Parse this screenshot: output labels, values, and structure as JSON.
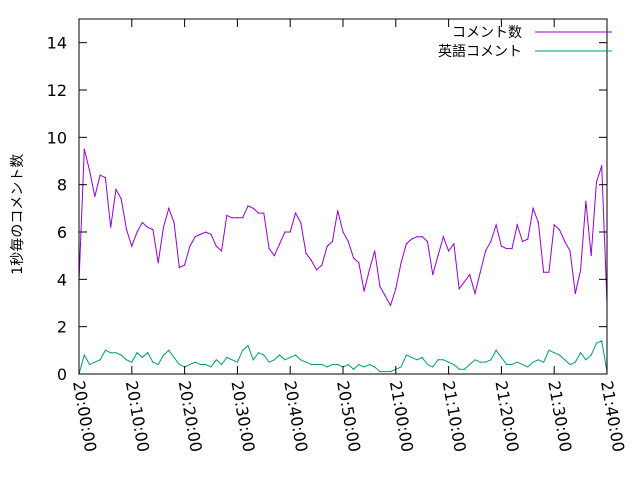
{
  "chart_data": {
    "type": "line",
    "ylabel": "1秒毎のコメント数",
    "ylim": [
      0,
      15
    ],
    "y_ticks": [
      "0",
      "2",
      "4",
      "6",
      "8",
      "10",
      "12",
      "14"
    ],
    "x_ticks": [
      "20:00:00",
      "20:10:00",
      "20:20:00",
      "20:30:00",
      "20:40:00",
      "20:50:00",
      "21:00:00",
      "21:10:00",
      "21:20:00",
      "21:30:00",
      "21:40:00"
    ],
    "x_range_minutes": [
      0,
      100
    ],
    "legend_position": "top-right",
    "grid": false,
    "series": [
      {
        "name": "コメント数",
        "color": "#9400d3",
        "values": [
          3.9,
          9.5,
          8.6,
          7.5,
          8.4,
          8.3,
          6.2,
          7.8,
          7.4,
          6.1,
          5.4,
          6.0,
          6.4,
          6.2,
          6.1,
          4.7,
          6.2,
          7.0,
          6.4,
          4.5,
          4.6,
          5.4,
          5.8,
          5.9,
          6.0,
          5.9,
          5.4,
          5.2,
          6.7,
          6.6,
          6.6,
          6.6,
          7.1,
          7.0,
          6.8,
          6.8,
          5.3,
          5.0,
          5.5,
          6.0,
          6.0,
          6.8,
          6.4,
          5.1,
          4.8,
          4.4,
          4.6,
          5.4,
          5.6,
          6.9,
          6.0,
          5.6,
          4.9,
          4.7,
          3.5,
          4.4,
          5.2,
          3.7,
          3.3,
          2.9,
          3.6,
          4.7,
          5.5,
          5.7,
          5.8,
          5.8,
          5.6,
          4.2,
          5.0,
          5.8,
          5.2,
          5.5,
          3.6,
          3.9,
          4.2,
          3.4,
          4.3,
          5.2,
          5.6,
          6.3,
          5.4,
          5.3,
          5.3,
          6.3,
          5.6,
          5.7,
          7.0,
          6.4,
          4.3,
          4.3,
          6.3,
          6.1,
          5.6,
          5.2,
          3.4,
          4.4,
          7.3,
          5.0,
          8.1,
          8.8,
          3.0
        ]
      },
      {
        "name": "英語コメント",
        "color": "#009e73",
        "values": [
          0.0,
          0.8,
          0.4,
          0.5,
          0.6,
          1.0,
          0.9,
          0.9,
          0.8,
          0.6,
          0.5,
          0.9,
          0.7,
          0.9,
          0.5,
          0.4,
          0.8,
          1.0,
          0.7,
          0.4,
          0.3,
          0.4,
          0.5,
          0.4,
          0.4,
          0.3,
          0.6,
          0.4,
          0.7,
          0.6,
          0.5,
          1.0,
          1.2,
          0.6,
          0.9,
          0.8,
          0.5,
          0.6,
          0.8,
          0.6,
          0.7,
          0.8,
          0.6,
          0.5,
          0.4,
          0.4,
          0.4,
          0.3,
          0.4,
          0.4,
          0.3,
          0.4,
          0.2,
          0.4,
          0.3,
          0.4,
          0.3,
          0.1,
          0.1,
          0.1,
          0.2,
          0.3,
          0.8,
          0.7,
          0.6,
          0.7,
          0.4,
          0.3,
          0.6,
          0.6,
          0.5,
          0.4,
          0.2,
          0.2,
          0.4,
          0.6,
          0.5,
          0.5,
          0.6,
          1.0,
          0.7,
          0.4,
          0.4,
          0.5,
          0.4,
          0.3,
          0.5,
          0.6,
          0.5,
          1.0,
          0.9,
          0.8,
          0.6,
          0.4,
          0.5,
          0.9,
          0.6,
          0.8,
          1.3,
          1.4,
          0.1
        ]
      }
    ]
  }
}
